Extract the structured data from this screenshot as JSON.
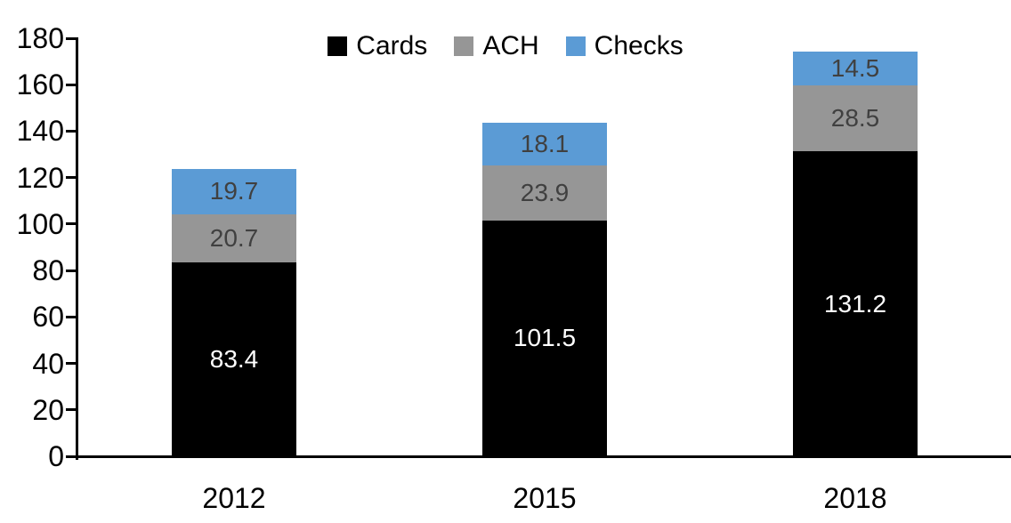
{
  "chart_data": {
    "type": "bar",
    "stacked": true,
    "title": "",
    "xlabel": "",
    "ylabel": "",
    "categories": [
      "2012",
      "2015",
      "2018"
    ],
    "series": [
      {
        "name": "Cards",
        "color": "#000000",
        "label_color": "#FFFFFF",
        "values": [
          83.4,
          101.5,
          131.2
        ]
      },
      {
        "name": "ACH",
        "color": "#969696",
        "label_color": "#404040",
        "values": [
          20.7,
          23.9,
          28.5
        ]
      },
      {
        "name": "Checks",
        "color": "#5B9BD5",
        "label_color": "#404040",
        "values": [
          19.7,
          18.1,
          14.5
        ]
      }
    ],
    "y_axis": {
      "min": 0,
      "max": 180,
      "tick_interval": 20,
      "ticks": [
        0,
        20,
        40,
        60,
        80,
        100,
        120,
        140,
        160,
        180
      ]
    },
    "legend": {
      "position": "top-center",
      "entries": [
        "Cards",
        "ACH",
        "Checks"
      ]
    },
    "grid": "off"
  }
}
